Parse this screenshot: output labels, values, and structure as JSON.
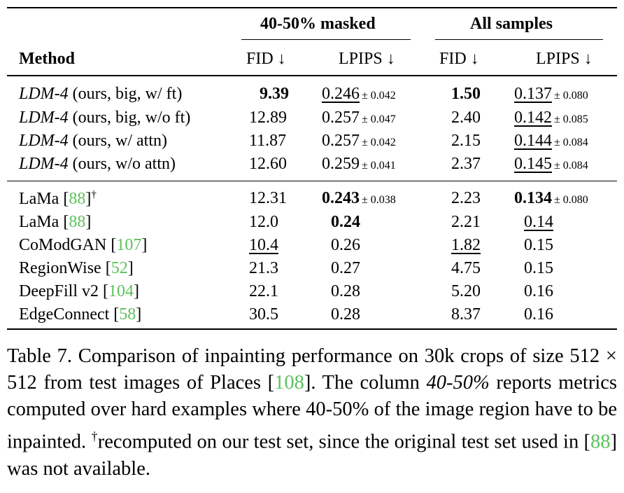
{
  "header": {
    "group1": "40-50% masked",
    "group2": "All samples",
    "method": "Method",
    "fid1": "FID ↓",
    "lpips1": "LPIPS ↓",
    "fid2": "FID ↓",
    "lpips2": "LPIPS ↓"
  },
  "rows_ldm": [
    {
      "name_it": "LDM-4",
      "name_rest": " (ours, big, w/ ft)",
      "fid1": "9.39",
      "lpips1": "0.246",
      "lpips1_pm": "± 0.042",
      "fid2": "1.50",
      "lpips2": "0.137",
      "lpips2_pm": "± 0.080"
    },
    {
      "name_it": "LDM-4",
      "name_rest": " (ours, big, w/o ft)",
      "fid1": "12.89",
      "lpips1": "0.257",
      "lpips1_pm": "± 0.047",
      "fid2": "2.40",
      "lpips2": "0.142",
      "lpips2_pm": "± 0.085"
    },
    {
      "name_it": "LDM-4",
      "name_rest": " (ours, w/ attn)",
      "fid1": "11.87",
      "lpips1": "0.257",
      "lpips1_pm": "± 0.042",
      "fid2": "2.15",
      "lpips2": "0.144",
      "lpips2_pm": "± 0.084"
    },
    {
      "name_it": "LDM-4",
      "name_rest": " (ours, w/o attn)",
      "fid1": "12.60",
      "lpips1": "0.259",
      "lpips1_pm": "± 0.041",
      "fid2": "2.37",
      "lpips2": "0.145",
      "lpips2_pm": "± 0.084"
    }
  ],
  "rows_other": [
    {
      "name": "LaMa ",
      "cite": "88",
      "dagger": "†",
      "fid1": "12.31",
      "lpips1": "0.243",
      "lpips1_pm": "± 0.038",
      "fid2": "2.23",
      "lpips2": "0.134",
      "lpips2_pm": "± 0.080"
    },
    {
      "name": "LaMa ",
      "cite": "88",
      "fid1": "12.0",
      "lpips1": "0.24",
      "fid2": "2.21",
      "lpips2": "0.14"
    },
    {
      "name": "CoModGAN ",
      "cite": "107",
      "fid1": "10.4",
      "lpips1": "0.26",
      "fid2": "1.82",
      "lpips2": "0.15"
    },
    {
      "name": "RegionWise ",
      "cite": "52",
      "fid1": "21.3",
      "lpips1": "0.27",
      "fid2": "4.75",
      "lpips2": "0.15"
    },
    {
      "name": "DeepFill v2 ",
      "cite": "104",
      "fid1": "22.1",
      "lpips1": "0.28",
      "fid2": "5.20",
      "lpips2": "0.16"
    },
    {
      "name": "EdgeConnect ",
      "cite": "58",
      "fid1": "30.5",
      "lpips1": "0.28",
      "fid2": "8.37",
      "lpips2": "0.16"
    }
  ],
  "caption": {
    "p1": "Table 7.  Comparison of inpainting performance on 30k crops of size 512 × 512 from test images of Places [",
    "cite1": "108",
    "p2": "]. The column ",
    "it1": "40-50%",
    "p3": " reports metrics computed over hard examples where 40-50% of the image region have to be inpainted. ",
    "dagger": "†",
    "p4": "recomputed on our test set, since the original test set used in [",
    "cite2": "88",
    "p5": "] was not available."
  }
}
